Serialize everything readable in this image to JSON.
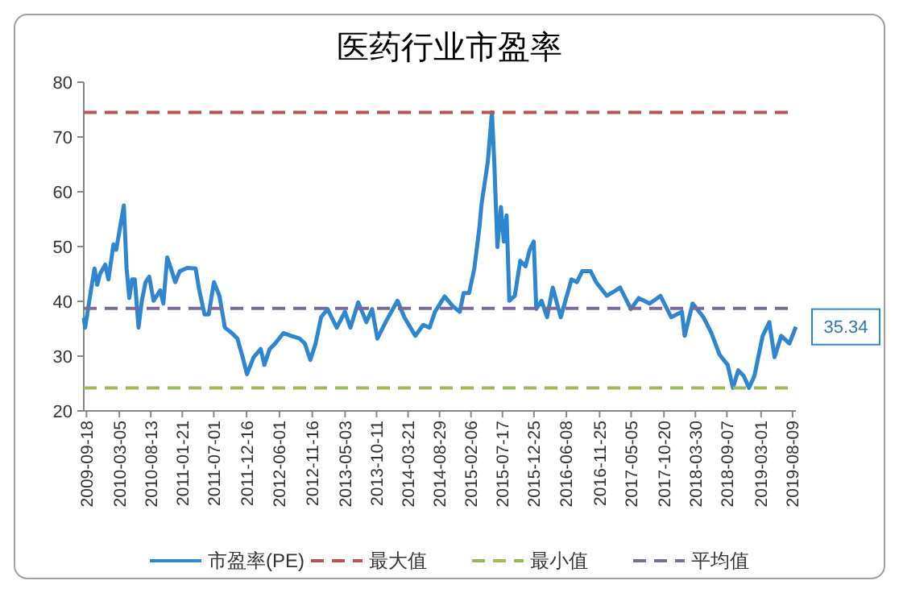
{
  "chart_data": {
    "type": "line",
    "title": "医药行业市盈率",
    "xlim": [
      "2009-09-04",
      "2019-08-26"
    ],
    "xticks": [
      "2009-09-18",
      "2010-03-05",
      "2010-08-13",
      "2011-01-21",
      "2011-07-01",
      "2011-12-16",
      "2012-06-01",
      "2012-11-16",
      "2013-05-03",
      "2013-10-11",
      "2014-03-21",
      "2014-08-29",
      "2015-02-06",
      "2015-07-17",
      "2015-12-25",
      "2016-06-08",
      "2016-11-25",
      "2017-05-05",
      "2017-10-20",
      "2018-03-30",
      "2018-09-07",
      "2019-03-01",
      "2019-08-09"
    ],
    "ylim": [
      20,
      80
    ],
    "yticks": [
      20,
      30,
      40,
      50,
      60,
      70,
      80
    ],
    "grid": false,
    "legend": "bottom",
    "marker": "none",
    "annotations": [
      {
        "text": "35.34",
        "x": "2019-08-26",
        "y": 35.34
      }
    ],
    "series": [
      {
        "name": "市盈率(PE)",
        "color": "#2e86d0",
        "line_style": "solid",
        "x": [
          "2009-09-04",
          "2009-09-11",
          "2009-10-15",
          "2009-10-29",
          "2009-11-12",
          "2009-11-26",
          "2009-12-23",
          "2010-01-08",
          "2010-02-03",
          "2010-02-17",
          "2010-03-10",
          "2010-03-28",
          "2010-04-11",
          "2010-04-25",
          "2010-05-09",
          "2010-05-23",
          "2010-06-11",
          "2010-06-28",
          "2010-07-17",
          "2010-08-05",
          "2010-08-27",
          "2010-09-30",
          "2010-10-16",
          "2010-11-05",
          "2010-11-24",
          "2010-12-16",
          "2011-01-08",
          "2011-02-15",
          "2011-03-30",
          "2011-04-18",
          "2011-05-15",
          "2011-06-05",
          "2011-07-02",
          "2011-07-30",
          "2011-08-27",
          "2011-10-02",
          "2011-10-30",
          "2011-11-26",
          "2011-12-18",
          "2012-01-21",
          "2012-02-26",
          "2012-03-16",
          "2012-04-12",
          "2012-05-10",
          "2012-06-21",
          "2012-07-31",
          "2012-09-12",
          "2012-10-09",
          "2012-11-06",
          "2012-12-03",
          "2012-12-31",
          "2013-02-02",
          "2013-03-21",
          "2013-05-02",
          "2013-05-30",
          "2013-07-09",
          "2013-08-20",
          "2013-09-18",
          "2013-10-15",
          "2013-11-26",
          "2014-01-26",
          "2014-03-02",
          "2014-04-27",
          "2014-06-06",
          "2014-07-09",
          "2014-08-06",
          "2014-09-24",
          "2014-11-05",
          "2014-12-11",
          "2014-12-30",
          "2015-01-27",
          "2015-02-23",
          "2015-03-22",
          "2015-03-31",
          "2015-05-03",
          "2015-05-24",
          "2015-06-05",
          "2015-06-21",
          "2015-07-09",
          "2015-07-24",
          "2015-08-07",
          "2015-08-21",
          "2015-09-18",
          "2015-10-16",
          "2015-11-12",
          "2015-12-03",
          "2015-12-24",
          "2016-01-06",
          "2016-02-02",
          "2016-03-01",
          "2016-03-30",
          "2016-05-10",
          "2016-07-04",
          "2016-08-01",
          "2016-08-28",
          "2016-10-10",
          "2016-11-07",
          "2017-01-01",
          "2017-03-10",
          "2017-05-04",
          "2017-06-13",
          "2017-08-08",
          "2017-10-02",
          "2017-11-26",
          "2018-01-20",
          "2018-02-03",
          "2018-03-16",
          "2018-05-10",
          "2018-06-20",
          "2018-07-31",
          "2018-09-11",
          "2018-10-08",
          "2018-11-04",
          "2018-12-02",
          "2018-12-29",
          "2019-01-26",
          "2019-03-09",
          "2019-04-12",
          "2019-05-09",
          "2019-06-12",
          "2019-07-24",
          "2019-08-26"
        ],
        "values": [
          37,
          35.2,
          43,
          46,
          43,
          45,
          46.7,
          44,
          50.4,
          49.4,
          53.8,
          57.5,
          46,
          40.6,
          44,
          44,
          35.2,
          40.1,
          43.5,
          44.5,
          40.1,
          42,
          39.6,
          48,
          46,
          43.5,
          45.5,
          46.1,
          46,
          42,
          37.6,
          37.6,
          43.5,
          41,
          35.2,
          34.2,
          33.2,
          29.8,
          26.7,
          29.8,
          31.3,
          28.4,
          31.3,
          32.3,
          34.2,
          33.7,
          33.2,
          32.3,
          29.3,
          32.3,
          37.1,
          38.6,
          35.2,
          38.1,
          35.2,
          39.8,
          36.2,
          38.6,
          33.2,
          36.2,
          40.1,
          37.1,
          33.7,
          35.7,
          35.2,
          38.1,
          40.9,
          39.1,
          38.1,
          41.5,
          41.5,
          46,
          53.8,
          57.5,
          65.5,
          74.5,
          65.5,
          49.9,
          57.2,
          50.9,
          55.7,
          40.1,
          41,
          47.4,
          46.4,
          49.4,
          50.9,
          38.6,
          40.1,
          37.1,
          42.5,
          37.1,
          44,
          43.5,
          45.5,
          45.5,
          43.5,
          41,
          42.5,
          38.6,
          40.6,
          39.6,
          41,
          37.1,
          38.1,
          33.7,
          39.6,
          37.1,
          34.2,
          30.3,
          28.4,
          24.2,
          27.4,
          26.4,
          24.2,
          26.4,
          33.7,
          36.2,
          29.8,
          33.7,
          32.3,
          35.34
        ]
      },
      {
        "name": "最大值",
        "color": "#b85450",
        "line_style": "dashed",
        "x": [
          "2009-09-04",
          "2019-08-26"
        ],
        "values": [
          74.5,
          74.5
        ]
      },
      {
        "name": "最小值",
        "color": "#9bbb59",
        "line_style": "dashed",
        "x": [
          "2009-09-04",
          "2019-08-26"
        ],
        "values": [
          24.2,
          24.2
        ]
      },
      {
        "name": "平均值",
        "color": "#7a6a9a",
        "line_style": "dashed",
        "x": [
          "2009-09-04",
          "2019-08-26"
        ],
        "values": [
          38.7,
          38.7
        ]
      }
    ]
  }
}
